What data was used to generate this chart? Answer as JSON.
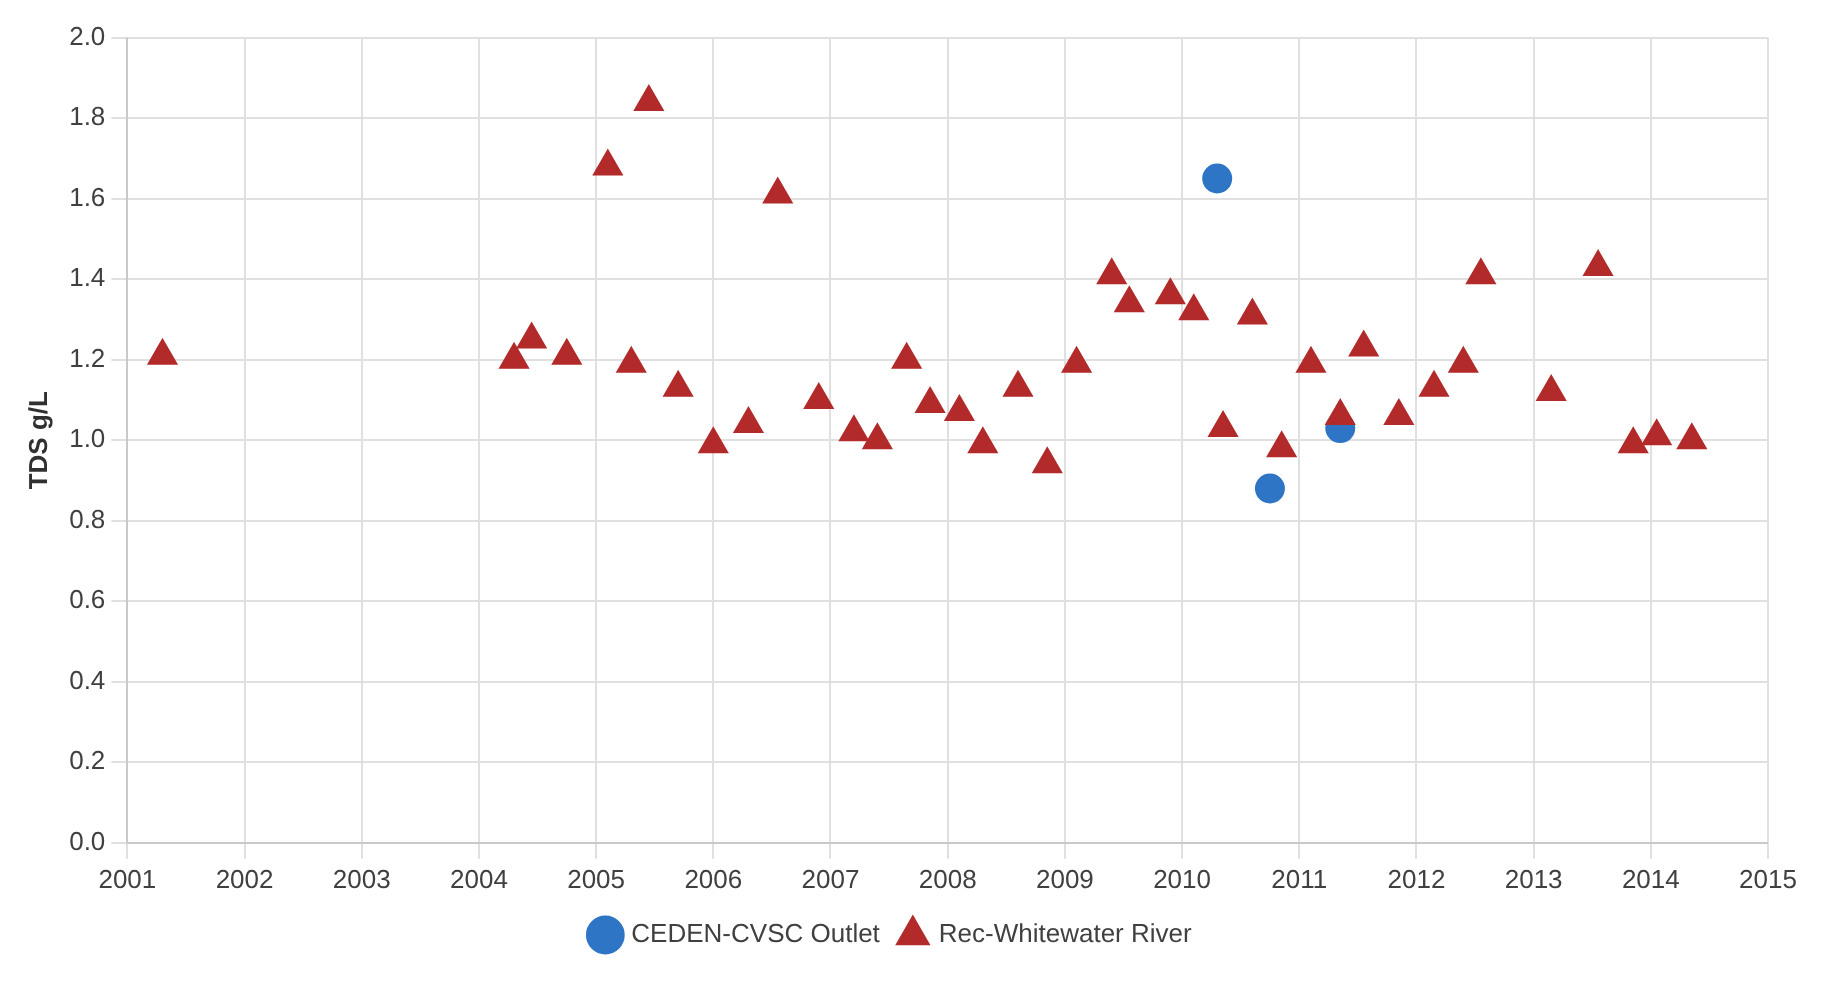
{
  "chart_data": {
    "type": "scatter",
    "ylabel": "TDS g/L",
    "xlim": [
      2001,
      2015
    ],
    "xticks": [
      2001,
      2002,
      2003,
      2004,
      2005,
      2006,
      2007,
      2008,
      2009,
      2010,
      2011,
      2012,
      2013,
      2014,
      2015
    ],
    "ylim": [
      0,
      2
    ],
    "yticks": [
      {
        "value": 0,
        "label": "0.0"
      },
      {
        "value": 0.2,
        "label": "0.2"
      },
      {
        "value": 0.4,
        "label": "0.4"
      },
      {
        "value": 0.6,
        "label": "0.6"
      },
      {
        "value": 0.8,
        "label": "0.8"
      },
      {
        "value": 1,
        "label": "1.0"
      },
      {
        "value": 1.2,
        "label": "1.2"
      },
      {
        "value": 1.4,
        "label": "1.4"
      },
      {
        "value": 1.6,
        "label": "1.6"
      },
      {
        "value": 1.8,
        "label": "1.8"
      },
      {
        "value": 2,
        "label": "2.0"
      }
    ],
    "grid": true,
    "legend": "bottom",
    "series": [
      {
        "name": "CEDEN-CVSC Outlet",
        "color": "#2e75c6",
        "marker": "circle",
        "x": [
          2010.3,
          2010.75,
          2011.35
        ],
        "values": [
          1.65,
          0.88,
          1.03
        ]
      },
      {
        "name": "Rec-Whitewater River",
        "color": "#b22a2a",
        "marker": "triangle",
        "x": [
          2001.3,
          2004.3,
          2004.45,
          2004.75,
          2005.1,
          2005.3,
          2005.45,
          2005.7,
          2006.0,
          2006.3,
          2006.55,
          2006.9,
          2007.2,
          2007.4,
          2007.65,
          2007.85,
          2008.1,
          2008.3,
          2008.6,
          2008.85,
          2009.1,
          2009.4,
          2009.55,
          2009.9,
          2010.1,
          2010.35,
          2010.6,
          2010.85,
          2011.1,
          2011.35,
          2011.55,
          2011.85,
          2012.15,
          2012.4,
          2012.55,
          2013.15,
          2013.55,
          2013.85,
          2014.05,
          2014.35
        ],
        "values": [
          1.21,
          1.2,
          1.25,
          1.21,
          1.68,
          1.19,
          1.84,
          1.13,
          0.99,
          1.04,
          1.61,
          1.1,
          1.02,
          1.0,
          1.2,
          1.09,
          1.07,
          0.99,
          1.13,
          0.94,
          1.19,
          1.41,
          1.34,
          1.36,
          1.32,
          1.03,
          1.31,
          0.98,
          1.19,
          1.06,
          1.23,
          1.06,
          1.13,
          1.19,
          1.41,
          1.12,
          1.43,
          0.99,
          1.01,
          1.0
        ]
      }
    ]
  }
}
